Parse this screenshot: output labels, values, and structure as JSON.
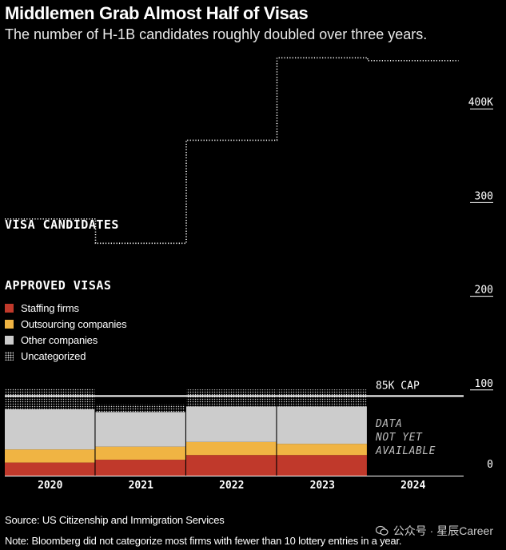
{
  "header": {
    "title": "Middlemen Grab Almost Half of Visas",
    "subtitle": "The number of H-1B candidates roughly doubled over three years."
  },
  "labels": {
    "visa_candidates": "VISA CANDIDATES",
    "approved_visas": "APPROVED VISAS",
    "cap_label": "85K CAP",
    "not_available_lines": [
      "DATA",
      "NOT YET",
      "AVAILABLE"
    ]
  },
  "legend": [
    {
      "label": "Staffing firms",
      "color": "#c0392b",
      "pattern": "solid"
    },
    {
      "label": "Outsourcing companies",
      "color": "#f0b443",
      "pattern": "solid"
    },
    {
      "label": "Other companies",
      "color": "#cccccc",
      "pattern": "solid"
    },
    {
      "label": "Uncategorized",
      "color": "#cfcfcf",
      "pattern": "dots"
    }
  ],
  "footer": {
    "source": "Source: US Citizenship and Immigration Services",
    "note": "Note: Bloomberg did not categorize most firms with fewer than 10 lottery entries in a year."
  },
  "watermark": "公众号 · 星辰Career",
  "chart_data": {
    "type": "bar",
    "categories": [
      "2020",
      "2021",
      "2022",
      "2023",
      "2024"
    ],
    "y_ticks": [
      "0",
      "100",
      "200",
      "300",
      "400K"
    ],
    "y_tick_values": [
      0,
      100,
      200,
      300,
      400
    ],
    "ylim": [
      0,
      445
    ],
    "cap": 85,
    "colors": {
      "staffing": "#c0392b",
      "outsourcing": "#f0b443",
      "other": "#cccccc",
      "uncategorized": "#d0d0d0",
      "candidates_line": "#ffffff",
      "cap_line": "#ffffff"
    },
    "series": [
      {
        "name": "Staffing firms",
        "values": [
          14,
          17,
          22,
          22,
          null
        ]
      },
      {
        "name": "Outsourcing companies",
        "values": [
          14,
          14,
          14,
          12,
          null
        ]
      },
      {
        "name": "Other companies",
        "values": [
          43,
          37,
          38,
          40,
          null
        ]
      },
      {
        "name": "Uncategorized",
        "values": [
          22,
          8,
          18,
          18,
          null
        ]
      }
    ],
    "visa_candidates": [
      274,
      248,
      358,
      446,
      443
    ]
  }
}
